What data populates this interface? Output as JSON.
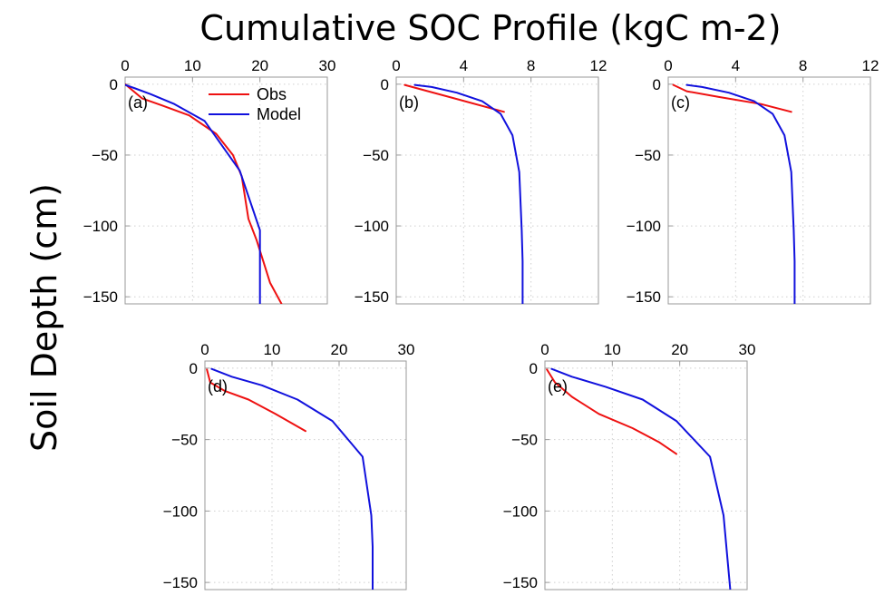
{
  "title": "Cumulative SOC Profile (kgC m-2)",
  "ylabel": "Soil Depth (cm)",
  "legend": {
    "placement": "top-right of panel (a)",
    "entries": [
      {
        "name": "Obs",
        "color": "#ee1111"
      },
      {
        "name": "Model",
        "color": "#1111dd"
      }
    ]
  },
  "chart_data": [
    {
      "type": "line",
      "panel": "(a)",
      "xlim": [
        0,
        30
      ],
      "xticks": [
        0,
        10,
        20,
        30
      ],
      "ylim": [
        -155,
        5
      ],
      "yticks": [
        0,
        -50,
        -100,
        -150
      ],
      "grid": true,
      "x_axis_position": "top",
      "series": [
        {
          "name": "Obs",
          "color": "#ee1111",
          "x": [
            0,
            2.5,
            5.5,
            9.5,
            13.5,
            16,
            17.3,
            17.8,
            18.3,
            19.5,
            20.5,
            21.5,
            23.2
          ],
          "y": [
            0,
            -10,
            -15,
            -22,
            -35,
            -50,
            -65,
            -80,
            -95,
            -110,
            -125,
            -140,
            -155
          ]
        },
        {
          "name": "Model",
          "color": "#1111dd",
          "x": [
            0,
            1.5,
            3.8,
            7.3,
            11.8,
            17,
            20,
            20,
            20,
            20
          ],
          "y": [
            -0.5,
            -3,
            -7,
            -14,
            -26,
            -61,
            -103,
            -120,
            -140,
            -155
          ]
        }
      ]
    },
    {
      "type": "line",
      "panel": "(b)",
      "xlim": [
        0,
        12
      ],
      "xticks": [
        0,
        4,
        8,
        12
      ],
      "ylim": [
        -155,
        5
      ],
      "yticks": [
        0,
        -50,
        -100,
        -150
      ],
      "grid": true,
      "x_axis_position": "top",
      "series": [
        {
          "name": "Obs",
          "color": "#ee1111",
          "x": [
            0.5,
            6.4
          ],
          "y": [
            -0.5,
            -19.5
          ]
        },
        {
          "name": "Model",
          "color": "#1111dd",
          "x": [
            1.1,
            2.1,
            3.6,
            5.1,
            6.2,
            6.9,
            7.3,
            7.45,
            7.5,
            7.5
          ],
          "y": [
            -0.5,
            -2,
            -6,
            -12,
            -21,
            -36,
            -62,
            -103,
            -125,
            -155
          ]
        }
      ]
    },
    {
      "type": "line",
      "panel": "(c)",
      "xlim": [
        0,
        12
      ],
      "xticks": [
        0,
        4,
        8,
        12
      ],
      "ylim": [
        -155,
        5
      ],
      "yticks": [
        0,
        -50,
        -100,
        -150
      ],
      "grid": true,
      "x_axis_position": "top",
      "series": [
        {
          "name": "Obs",
          "color": "#ee1111",
          "x": [
            0.3,
            1.1,
            3,
            5.5,
            7.3
          ],
          "y": [
            -0.5,
            -5,
            -9,
            -14,
            -19.5
          ]
        },
        {
          "name": "Model",
          "color": "#1111dd",
          "x": [
            1.1,
            2,
            3.6,
            5.1,
            6.2,
            6.9,
            7.3,
            7.45,
            7.5,
            7.5
          ],
          "y": [
            -0.5,
            -2,
            -6,
            -12,
            -21,
            -36,
            -62,
            -103,
            -125,
            -155
          ]
        }
      ]
    },
    {
      "type": "line",
      "panel": "(d)",
      "xlim": [
        0,
        30
      ],
      "xticks": [
        0,
        10,
        20,
        30
      ],
      "ylim": [
        -155,
        5
      ],
      "yticks": [
        0,
        -50,
        -100,
        -150
      ],
      "grid": true,
      "x_axis_position": "top",
      "series": [
        {
          "name": "Obs",
          "color": "#ee1111",
          "x": [
            0.3,
            0.8,
            3,
            6.5,
            10.5,
            15
          ],
          "y": [
            -1,
            -10,
            -16,
            -22,
            -32,
            -44
          ]
        },
        {
          "name": "Model",
          "color": "#1111dd",
          "x": [
            1,
            4,
            8.5,
            13.8,
            19,
            23.5,
            24.8,
            25,
            25
          ],
          "y": [
            -0.5,
            -6,
            -12,
            -22,
            -37,
            -62,
            -103,
            -125,
            -155
          ]
        }
      ]
    },
    {
      "type": "line",
      "panel": "(e)",
      "xlim": [
        0,
        30
      ],
      "xticks": [
        0,
        10,
        20,
        30
      ],
      "ylim": [
        -155,
        5
      ],
      "yticks": [
        0,
        -50,
        -100,
        -150
      ],
      "grid": true,
      "x_axis_position": "top",
      "series": [
        {
          "name": "Obs",
          "color": "#ee1111",
          "x": [
            0.3,
            1.5,
            4,
            8,
            13,
            17,
            19.5
          ],
          "y": [
            -1,
            -10,
            -20,
            -32,
            -42,
            -52,
            -60
          ]
        },
        {
          "name": "Model",
          "color": "#1111dd",
          "x": [
            1,
            4,
            9,
            14.5,
            19.5,
            24.5,
            26.5,
            27.5
          ],
          "y": [
            -0.5,
            -6,
            -13,
            -22,
            -37,
            -62,
            -103,
            -155
          ]
        }
      ]
    }
  ]
}
